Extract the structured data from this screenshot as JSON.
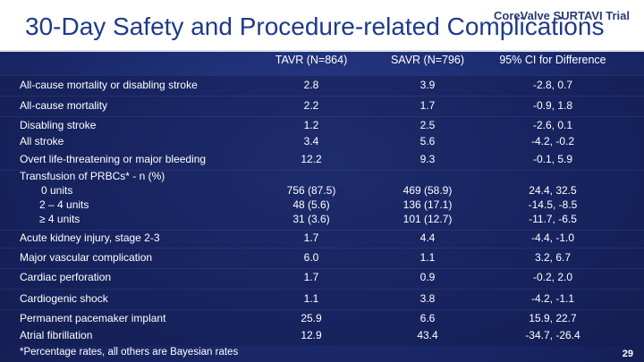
{
  "header": {
    "title": "30-Day Safety and Procedure-related Complications",
    "brand": "CoreValve SURTAVI Trial"
  },
  "columns": [
    "TAVR (N=864)",
    "SAVR (N=796)",
    "95% CI for Difference"
  ],
  "rows": {
    "allcause_stroke": {
      "label": "All-cause mortality or disabling stroke",
      "tavr": "2.8",
      "savr": "3.9",
      "ci": "-2.8, 0.7"
    },
    "allcause": {
      "label": "All-cause mortality",
      "tavr": "2.2",
      "savr": "1.7",
      "ci": "-0.9, 1.8"
    },
    "disabling_stroke": {
      "label": "Disabling stroke",
      "tavr": "1.2",
      "savr": "2.5",
      "ci": "-2.6, 0.1"
    },
    "all_stroke": {
      "label": "All stroke",
      "tavr": "3.4",
      "savr": "5.6",
      "ci": "-4.2, -0.2"
    },
    "bleeding": {
      "label": "Overt life-threatening or major bleeding",
      "tavr": "12.2",
      "savr": "9.3",
      "ci": "-0.1, 5.9"
    },
    "transfusion": {
      "label": "Transfusion of PRBCs* - n (%)"
    },
    "units0": {
      "label": "0 units",
      "tavr": "756 (87.5)",
      "savr": "469 (58.9)",
      "ci": "24.4, 32.5"
    },
    "units24": {
      "label": "2 – 4 units",
      "tavr": "48 (5.6)",
      "savr": "136 (17.1)",
      "ci": "-14.5, -8.5"
    },
    "units4": {
      "label": "≥ 4 units",
      "tavr": "31 (3.6)",
      "savr": "101 (12.7)",
      "ci": "-11.7, -6.5"
    },
    "aki": {
      "label": "Acute kidney injury, stage 2-3",
      "tavr": "1.7",
      "savr": "4.4",
      "ci": "-4.4, -1.0"
    },
    "vascular": {
      "label": "Major vascular complication",
      "tavr": "6.0",
      "savr": "1.1",
      "ci": "3.2, 6.7"
    },
    "perforation": {
      "label": "Cardiac perforation",
      "tavr": "1.7",
      "savr": "0.9",
      "ci": "-0.2, 2.0"
    },
    "shock": {
      "label": "Cardiogenic shock",
      "tavr": "1.1",
      "savr": "3.8",
      "ci": "-4.2, -1.1"
    },
    "pacemaker": {
      "label": "Permanent pacemaker implant",
      "tavr": "25.9",
      "savr": "6.6",
      "ci": "15.9, 22.7"
    },
    "afib": {
      "label": "Atrial fibrillation",
      "tavr": "12.9",
      "savr": "43.4",
      "ci": "-34.7, -26.4"
    }
  },
  "footnote": "*Percentage rates, all others are Bayesian rates",
  "page_number": "29"
}
